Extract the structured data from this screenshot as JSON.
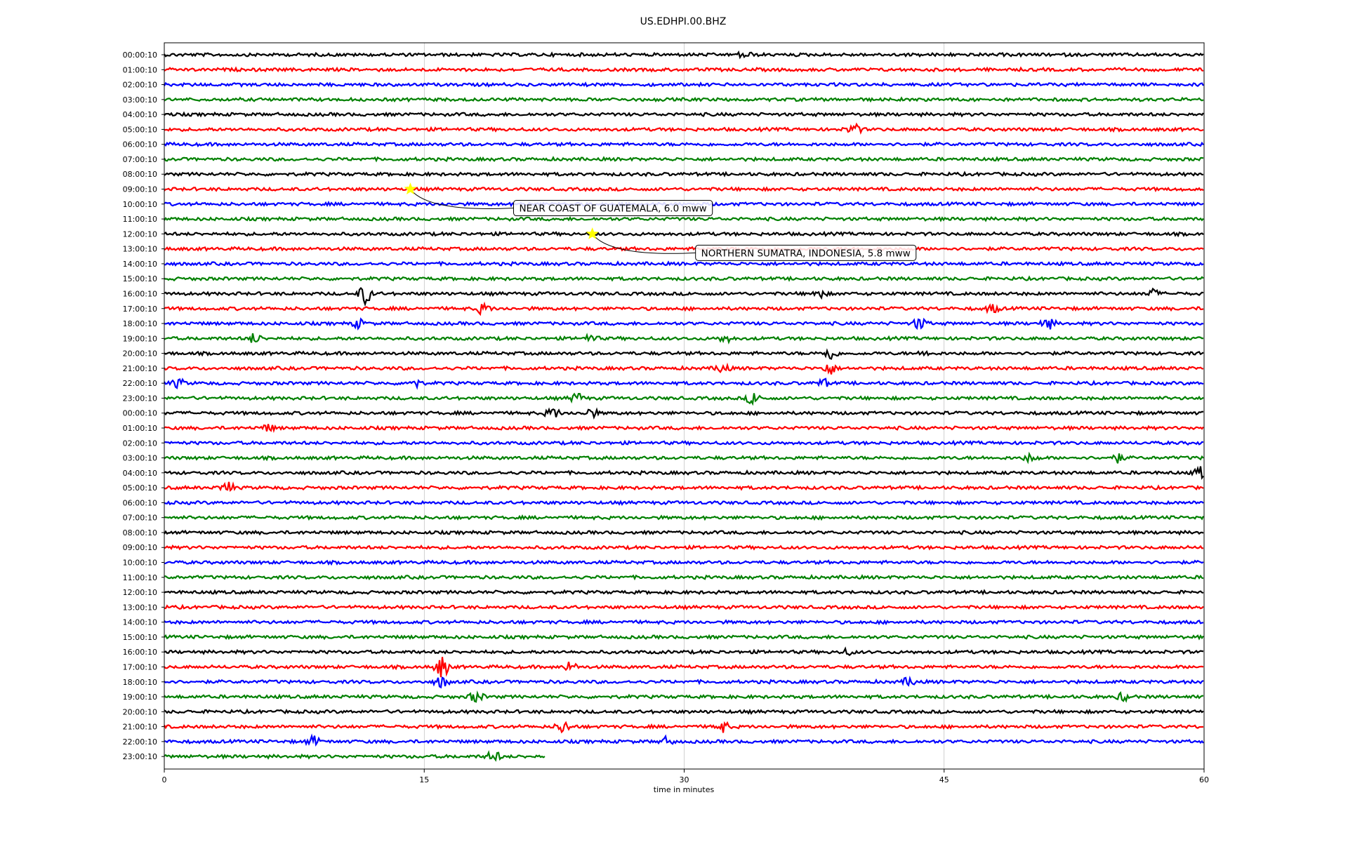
{
  "chart_data": {
    "type": "line",
    "title": "US.EDHPI.00.BHZ",
    "xlabel": "time in minutes",
    "ylabel": "",
    "xlim": [
      0,
      60
    ],
    "x_ticks": [
      "0",
      "15",
      "30",
      "45",
      "60"
    ],
    "grid": "vertical",
    "trace_colors": [
      "#000000",
      "#ff0000",
      "#0000ff",
      "#008000"
    ],
    "row_labels": [
      "00:00:10",
      "01:00:10",
      "02:00:10",
      "03:00:10",
      "04:00:10",
      "05:00:10",
      "06:00:10",
      "07:00:10",
      "08:00:10",
      "09:00:10",
      "10:00:10",
      "11:00:10",
      "12:00:10",
      "13:00:10",
      "14:00:10",
      "15:00:10",
      "16:00:10",
      "17:00:10",
      "18:00:10",
      "19:00:10",
      "20:00:10",
      "21:00:10",
      "22:00:10",
      "23:00:10",
      "00:00:10",
      "01:00:10",
      "02:00:10",
      "03:00:10",
      "04:00:10",
      "05:00:10",
      "06:00:10",
      "07:00:10",
      "08:00:10",
      "09:00:10",
      "10:00:10",
      "11:00:10",
      "12:00:10",
      "13:00:10",
      "14:00:10",
      "15:00:10",
      "16:00:10",
      "17:00:10",
      "18:00:10",
      "19:00:10",
      "20:00:10",
      "21:00:10",
      "22:00:10",
      "23:00:10"
    ],
    "last_row_end_minute": 22,
    "events": [
      {
        "row": 9,
        "minute": 14.2,
        "label": "NEAR COAST OF GUATEMALA, 6.0 mww",
        "star_color": "#ffff00"
      },
      {
        "row": 12,
        "minute": 24.7,
        "label": "NORTHERN SUMATRA, INDONESIA, 5.8 mww",
        "star_color": "#ffff00"
      }
    ],
    "signal_bursts": [
      {
        "row": 0,
        "minute": 33.5,
        "amp": 5
      },
      {
        "row": 5,
        "minute": 39.8,
        "amp": 8
      },
      {
        "row": 16,
        "minute": 11.6,
        "amp": 14
      },
      {
        "row": 16,
        "minute": 37.8,
        "amp": 6
      },
      {
        "row": 16,
        "minute": 57.0,
        "amp": 6
      },
      {
        "row": 17,
        "minute": 18.4,
        "amp": 8
      },
      {
        "row": 17,
        "minute": 47.8,
        "amp": 6
      },
      {
        "row": 18,
        "minute": 11.2,
        "amp": 6
      },
      {
        "row": 18,
        "minute": 43.6,
        "amp": 9
      },
      {
        "row": 18,
        "minute": 51.0,
        "amp": 8
      },
      {
        "row": 19,
        "minute": 5.2,
        "amp": 7
      },
      {
        "row": 19,
        "minute": 24.6,
        "amp": 5
      },
      {
        "row": 19,
        "minute": 32.4,
        "amp": 5
      },
      {
        "row": 20,
        "minute": 38.4,
        "amp": 10
      },
      {
        "row": 20,
        "minute": 44.0,
        "amp": 4
      },
      {
        "row": 21,
        "minute": 32.2,
        "amp": 7
      },
      {
        "row": 21,
        "minute": 38.4,
        "amp": 9
      },
      {
        "row": 22,
        "minute": 0.8,
        "amp": 6
      },
      {
        "row": 22,
        "minute": 14.4,
        "amp": 7
      },
      {
        "row": 22,
        "minute": 38.0,
        "amp": 6
      },
      {
        "row": 23,
        "minute": 23.8,
        "amp": 7
      },
      {
        "row": 23,
        "minute": 34.0,
        "amp": 9
      },
      {
        "row": 24,
        "minute": 22.4,
        "amp": 8
      },
      {
        "row": 24,
        "minute": 24.6,
        "amp": 7
      },
      {
        "row": 25,
        "minute": 6.0,
        "amp": 5
      },
      {
        "row": 27,
        "minute": 50.0,
        "amp": 6
      },
      {
        "row": 27,
        "minute": 55.0,
        "amp": 6
      },
      {
        "row": 28,
        "minute": 59.8,
        "amp": 8
      },
      {
        "row": 29,
        "minute": 3.6,
        "amp": 9
      },
      {
        "row": 40,
        "minute": 39.4,
        "amp": 4
      },
      {
        "row": 41,
        "minute": 16.0,
        "amp": 16
      },
      {
        "row": 41,
        "minute": 23.4,
        "amp": 7
      },
      {
        "row": 42,
        "minute": 16.0,
        "amp": 8
      },
      {
        "row": 42,
        "minute": 43.0,
        "amp": 6
      },
      {
        "row": 43,
        "minute": 18.0,
        "amp": 8
      },
      {
        "row": 43,
        "minute": 55.4,
        "amp": 6
      },
      {
        "row": 45,
        "minute": 23.0,
        "amp": 9
      },
      {
        "row": 45,
        "minute": 32.2,
        "amp": 8
      },
      {
        "row": 46,
        "minute": 8.6,
        "amp": 7
      },
      {
        "row": 46,
        "minute": 29.0,
        "amp": 6
      },
      {
        "row": 47,
        "minute": 19.0,
        "amp": 8
      }
    ]
  }
}
